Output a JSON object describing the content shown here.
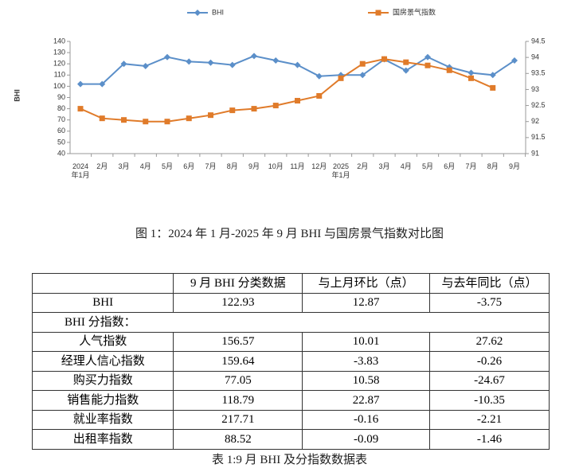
{
  "chart_data": {
    "type": "line",
    "y_label": "BHI",
    "categories": [
      "2024\n年1月",
      "2月",
      "3月",
      "4月",
      "5月",
      "6月",
      "7月",
      "8月",
      "9月",
      "10月",
      "11月",
      "12月",
      "2025\n年1月",
      "2月",
      "3月",
      "4月",
      "5月",
      "6月",
      "7月",
      "8月",
      "9月"
    ],
    "series": [
      {
        "name": "BHI",
        "color": "#5b8fc9",
        "marker": "diamond",
        "values": [
          102,
          102,
          120,
          118,
          126,
          122,
          121,
          119,
          127,
          123,
          119,
          109,
          110,
          110,
          124,
          114,
          126,
          117,
          112,
          110,
          123
        ]
      },
      {
        "name": "国房景气指数",
        "color": "#e07b2a",
        "marker": "square",
        "axis": "y2",
        "values": [
          92.4,
          92.1,
          92.05,
          92.0,
          92.0,
          92.1,
          92.2,
          92.35,
          92.4,
          92.5,
          92.65,
          92.8,
          93.35,
          93.8,
          93.95,
          93.85,
          93.75,
          93.6,
          93.35,
          93.05,
          null
        ]
      }
    ],
    "ylim": [
      40,
      140
    ],
    "yticks": [
      40,
      50,
      60,
      70,
      80,
      90,
      100,
      110,
      120,
      130,
      140
    ],
    "y2lim": [
      91,
      94.5
    ],
    "y2ticks": [
      91,
      91.5,
      92,
      92.5,
      93,
      93.5,
      94,
      94.5
    ],
    "grid": false,
    "legend": "top"
  },
  "figure_caption": "图 1：2024 年 1 月-2025 年 9 月 BHI 与国房景气指数对比图",
  "table": {
    "header": [
      "",
      "9 月 BHI 分类数据",
      "与上月环比（点）",
      "与去年同比（点）"
    ],
    "rows": [
      [
        "BHI",
        122.93,
        12.87,
        -3.75
      ],
      [
        "BHI 分指数："
      ],
      [
        "人气指数",
        156.57,
        10.01,
        27.62
      ],
      [
        "经理人信心指数",
        159.64,
        -3.83,
        -0.26
      ],
      [
        "购买力指数",
        77.05,
        10.58,
        -24.67
      ],
      [
        "销售能力指数",
        118.79,
        22.87,
        -10.35
      ],
      [
        "就业率指数",
        217.71,
        -0.16,
        -2.21
      ],
      [
        "出租率指数",
        88.52,
        -0.09,
        -1.46
      ]
    ],
    "caption": "表 1:9 月 BHI 及分指数数据表"
  }
}
